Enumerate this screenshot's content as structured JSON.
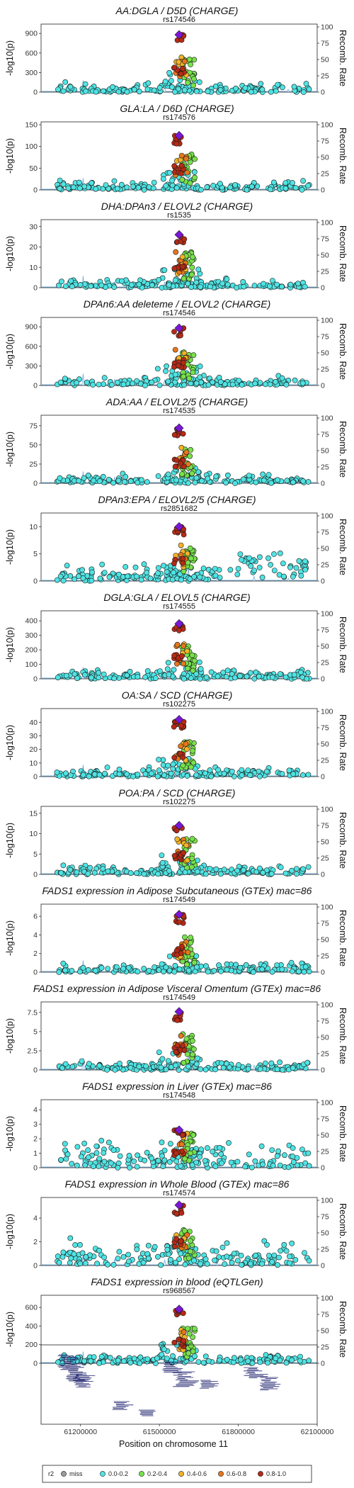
{
  "figure": {
    "y_axis_label": "-log10(p)",
    "y2_axis_label": "Recomb. Rate",
    "x_axis_label": "Position on chromosome 11"
  },
  "colors": {
    "miss": "#9a9a9a",
    "r2_0_0.2": "#4fe3e3",
    "r2_0.2_0.4": "#77e24b",
    "r2_0.4_0.6": "#f2b327",
    "r2_0.6_0.8": "#e5771c",
    "r2_0.8_1.0": "#b62a14",
    "lead": "#7b16d8",
    "recomb": "#79b5e3"
  },
  "legend": {
    "title": "r2",
    "items": [
      "miss",
      "0.0-0.2",
      "0.2-0.4",
      "0.4-0.6",
      "0.6-0.8",
      "0.8-1.0"
    ]
  },
  "chart_data": [
    {
      "type": "scatter",
      "title": "AA:DGLA / D5D (CHARGE)",
      "lead_snp": "rs174546",
      "ylim": [
        0,
        1000
      ],
      "yticks": [
        0,
        300,
        600,
        900
      ],
      "lead_value": 880,
      "peak_bg": 950,
      "profile": "high"
    },
    {
      "type": "scatter",
      "title": "GLA:LA / D6D (CHARGE)",
      "lead_snp": "rs174576",
      "ylim": [
        0,
        150
      ],
      "yticks": [
        0,
        50,
        100,
        150
      ],
      "lead_value": 125,
      "peak_bg": 135,
      "profile": "high"
    },
    {
      "type": "scatter",
      "title": "DHA:DPAn3 / ELOVL2 (CHARGE)",
      "lead_snp": "rs1535",
      "ylim": [
        0,
        32
      ],
      "yticks": [
        0,
        10,
        20,
        30
      ],
      "lead_value": 26,
      "peak_bg": 28,
      "profile": "high"
    },
    {
      "type": "scatter",
      "title": "DPAn6:AA deleteme / ELOVL2 (CHARGE)",
      "lead_snp": "rs174546",
      "ylim": [
        0,
        1000
      ],
      "yticks": [
        0,
        300,
        600,
        900
      ],
      "lead_value": 880,
      "peak_bg": 950,
      "profile": "high"
    },
    {
      "type": "scatter",
      "title": "ADA:AA / ELOVL2/5 (CHARGE)",
      "lead_snp": "rs174535",
      "ylim": [
        0,
        85
      ],
      "yticks": [
        0,
        25,
        50,
        75
      ],
      "lead_value": 72,
      "peak_bg": 76,
      "profile": "high"
    },
    {
      "type": "scatter",
      "title": "DPAn3:EPA / ELOVL2/5 (CHARGE)",
      "lead_snp": "rs2851682",
      "ylim": [
        0,
        12
      ],
      "yticks": [
        0,
        5,
        10
      ],
      "lead_value": 10,
      "peak_bg": 8,
      "profile": "right"
    },
    {
      "type": "scatter",
      "title": "DGLA:GLA / ELOVL5 (CHARGE)",
      "lead_snp": "rs174555",
      "ylim": [
        0,
        450
      ],
      "yticks": [
        0,
        100,
        200,
        300,
        400
      ],
      "lead_value": 380,
      "peak_bg": 400,
      "profile": "high"
    },
    {
      "type": "scatter",
      "title": "OA:SA / SCD (CHARGE)",
      "lead_snp": "rs102275",
      "ylim": [
        0,
        48
      ],
      "yticks": [
        0,
        10,
        20,
        30,
        40
      ],
      "lead_value": 42,
      "peak_bg": 45,
      "profile": "high"
    },
    {
      "type": "scatter",
      "title": "POA:PA / SCD (CHARGE)",
      "lead_snp": "rs102275",
      "ylim": [
        0,
        16
      ],
      "yticks": [
        0,
        5,
        10,
        15
      ],
      "lead_value": 12,
      "peak_bg": 13,
      "profile": "mid"
    },
    {
      "type": "scatter",
      "title": "FADS1 expression in Adipose Subcutaneous (GTEx) mac=86",
      "lead_snp": "rs174549",
      "ylim": [
        0,
        7
      ],
      "yticks": [
        0,
        2,
        4,
        6
      ],
      "lead_value": 6.2,
      "peak_bg": 6.5,
      "profile": "mid"
    },
    {
      "type": "scatter",
      "title": "FADS1 expression in Adipose Visceral Omentum (GTEx) mac=86",
      "lead_snp": "rs174549",
      "ylim": [
        0,
        8.5
      ],
      "yticks": [
        0,
        2.5,
        5,
        7.5
      ],
      "lead_value": 7.6,
      "peak_bg": 7,
      "profile": "mid"
    },
    {
      "type": "scatter",
      "title": "FADS1 expression in Liver (GTEx) mac=86",
      "lead_snp": "rs174548",
      "ylim": [
        0,
        4.5
      ],
      "yticks": [
        0,
        1,
        2,
        3,
        4
      ],
      "lead_value": 2.6,
      "peak_bg": 3.2,
      "profile": "noisy"
    },
    {
      "type": "scatter",
      "title": "FADS1 expression in Whole Blood (GTEx) mac=86",
      "lead_snp": "rs174574",
      "ylim": [
        0,
        5.5
      ],
      "yticks": [
        0,
        2,
        4
      ],
      "lead_value": 5.1,
      "peak_bg": 4.8,
      "profile": "noisy"
    },
    {
      "type": "scatter",
      "title": "FADS1 expression in blood (eQTLGen)",
      "lead_snp": "rs968567",
      "ylim": [
        0,
        700
      ],
      "yticks": [
        0,
        200,
        400,
        600
      ],
      "lead_value": 580,
      "peak_bg": 480,
      "profile": "mid"
    }
  ],
  "x_axis": {
    "xlim": [
      61050000,
      62100000
    ],
    "tick_values": [
      61200000,
      61500000,
      61800000,
      62100000
    ],
    "tick_labels": [
      "61200000",
      "61500000",
      "61800000",
      "62100000"
    ]
  },
  "y2_axis": {
    "ylim": [
      0,
      100
    ],
    "ticks": [
      0,
      25,
      50,
      75,
      100
    ]
  }
}
